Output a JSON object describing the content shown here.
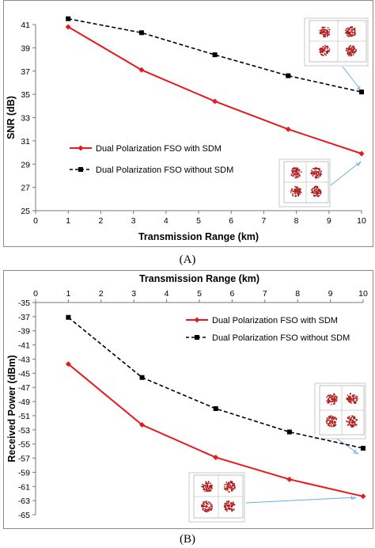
{
  "chart_data": [
    {
      "type": "line",
      "panel_label": "(A)",
      "title": "",
      "xlabel": "Transmission Range (km)",
      "ylabel": "SNR (dB)",
      "xlim": [
        0,
        10
      ],
      "ylim": [
        25,
        41
      ],
      "xticks": [
        "0",
        "1",
        "2",
        "3",
        "4",
        "5",
        "6",
        "7",
        "8",
        "9",
        "10"
      ],
      "yticks": [
        "25",
        "27",
        "29",
        "31",
        "33",
        "35",
        "37",
        "39",
        "41"
      ],
      "grid": false,
      "legend_position": "middle-left",
      "series": [
        {
          "name": "Dual Polarization FSO with SDM",
          "color": "#e8191d",
          "marker": "diamond",
          "line": "solid",
          "x": [
            1,
            3.25,
            5.5,
            7.75,
            10
          ],
          "y": [
            40.8,
            37.1,
            34.4,
            32.0,
            29.9
          ]
        },
        {
          "name": "Dual Polarization FSO without SDM",
          "color": "#000000",
          "marker": "square",
          "line": "dashed",
          "x": [
            1,
            3.25,
            5.5,
            7.75,
            10
          ],
          "y": [
            41.5,
            40.3,
            38.4,
            36.6,
            35.2
          ]
        }
      ],
      "insets": [
        "constellation diagram (with SDM)",
        "constellation diagram (without SDM)"
      ],
      "arrow_color": "#6aaee0"
    },
    {
      "type": "line",
      "panel_label": "(B)",
      "title": "",
      "xlabel": "Transmission Range (km)",
      "ylabel": "Received Power (dBm)",
      "xlim": [
        0,
        10
      ],
      "ylim": [
        -65,
        -35
      ],
      "xticks": [
        "0",
        "1",
        "2",
        "3",
        "4",
        "5",
        "6",
        "7",
        "8",
        "9",
        "10"
      ],
      "yticks": [
        "-35",
        "-37",
        "-39",
        "-41",
        "-43",
        "-45",
        "-47",
        "-49",
        "-51",
        "-53",
        "-55",
        "-57",
        "-59",
        "-61",
        "-63",
        "-65"
      ],
      "grid": false,
      "legend_position": "top-right",
      "series": [
        {
          "name": "Dual Polarization FSO with SDM",
          "color": "#e8191d",
          "marker": "diamond",
          "line": "solid",
          "x": [
            1,
            3.25,
            5.5,
            7.75,
            10
          ],
          "y": [
            -43.7,
            -52.3,
            -56.9,
            -60.0,
            -62.4
          ]
        },
        {
          "name": "Dual Polarization FSO without SDM",
          "color": "#000000",
          "marker": "square",
          "line": "dashed",
          "x": [
            1,
            3.25,
            5.5,
            7.75,
            10
          ],
          "y": [
            -37.1,
            -45.6,
            -50.0,
            -53.3,
            -55.6
          ]
        }
      ],
      "insets": [
        "constellation diagram (without SDM)",
        "constellation diagram (with SDM)"
      ],
      "arrow_color": "#6aaee0"
    }
  ]
}
